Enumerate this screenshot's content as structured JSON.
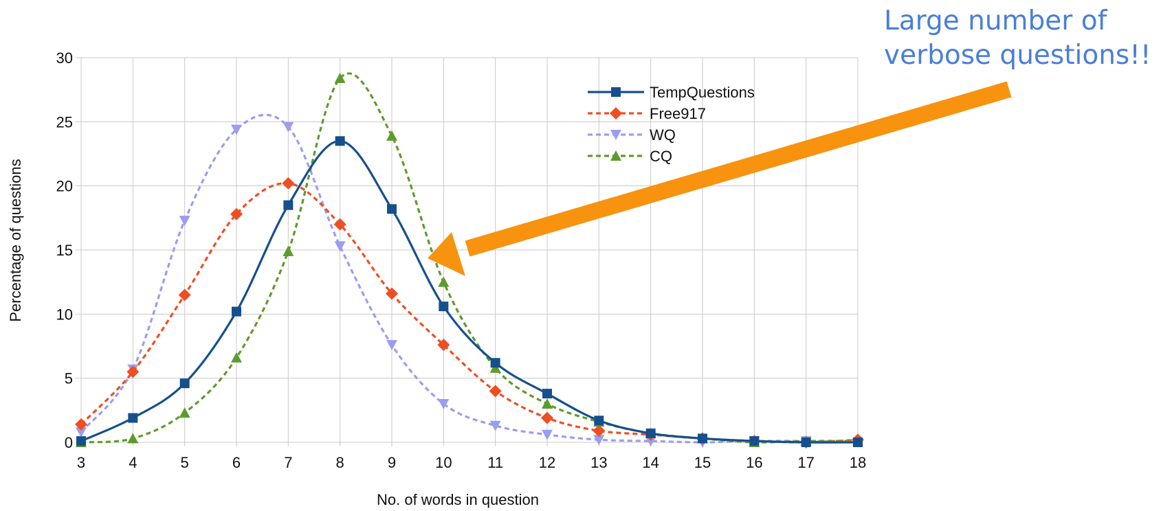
{
  "annotation": {
    "line1": "Large number of",
    "line2": "verbose questions!!"
  },
  "colors": {
    "TempQuestions": "#16508c",
    "Free917": "#ef4e23",
    "WQ": "#9c9cf0",
    "CQ": "#5e9b2d",
    "arrow": "#f7930f",
    "annotation": "#4a7fd8",
    "grid": "#c8c8c8"
  },
  "chart_data": {
    "type": "line",
    "xlabel": "No. of words in question",
    "ylabel": "Percentage of questions",
    "xlim": [
      3,
      18
    ],
    "ylim": [
      0,
      30
    ],
    "x": [
      3,
      4,
      5,
      6,
      7,
      8,
      9,
      10,
      11,
      12,
      13,
      14,
      15,
      16,
      17,
      18
    ],
    "yticks": [
      0,
      5,
      10,
      15,
      20,
      25,
      30
    ],
    "grid": true,
    "legend_position": "top-right",
    "series": [
      {
        "name": "TempQuestions",
        "line_style": "solid",
        "marker": "square",
        "values": [
          0.1,
          1.9,
          4.6,
          10.2,
          18.5,
          23.5,
          18.2,
          10.6,
          6.2,
          3.8,
          1.7,
          0.7,
          0.3,
          0.1,
          0.0,
          0.0
        ]
      },
      {
        "name": "Free917",
        "line_style": "dashed",
        "marker": "diamond",
        "values": [
          1.4,
          5.5,
          11.5,
          17.8,
          20.2,
          17.0,
          11.6,
          7.6,
          4.0,
          1.9,
          0.9,
          0.6,
          0.3,
          0.1,
          0.0,
          0.2
        ]
      },
      {
        "name": "WQ",
        "line_style": "dashed",
        "marker": "triangle-down",
        "values": [
          0.8,
          5.7,
          17.3,
          24.4,
          24.6,
          15.3,
          7.6,
          3.0,
          1.3,
          0.6,
          0.2,
          0.1,
          0.0,
          0.1,
          0.1,
          0.0
        ]
      },
      {
        "name": "CQ",
        "line_style": "dashed",
        "marker": "triangle-up",
        "values": [
          0.0,
          0.3,
          2.3,
          6.6,
          14.9,
          28.4,
          23.9,
          12.5,
          5.8,
          3.0,
          1.6,
          0.7,
          0.3,
          0.0,
          0.1,
          0.1
        ]
      }
    ]
  }
}
